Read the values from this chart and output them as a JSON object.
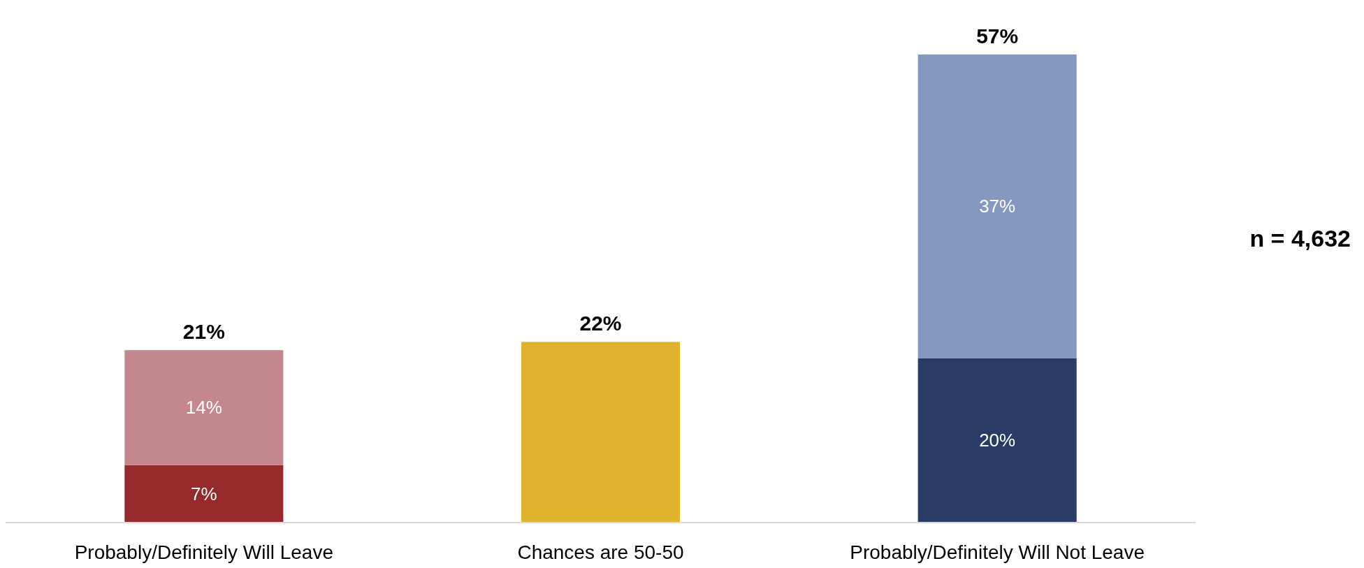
{
  "chart_data": {
    "type": "bar",
    "stacked": true,
    "categories": [
      "Probably/Definitely Will Leave",
      "Chances are 50-50",
      "Probably/Definitely Will Not Leave"
    ],
    "series": [
      {
        "values": [
          7,
          22,
          20
        ],
        "colors": [
          "#952a2c",
          "#e0b32f",
          "#2a3c66"
        ],
        "value_labels": [
          "7%",
          null,
          "20%"
        ]
      },
      {
        "values": [
          14,
          null,
          37
        ],
        "colors": [
          "#c4878d",
          null,
          "#8498c0"
        ],
        "value_labels": [
          "14%",
          null,
          "37%"
        ]
      }
    ],
    "totals": [
      "21%",
      "22%",
      "57%"
    ],
    "annotations": [
      "n = 4,632"
    ]
  }
}
